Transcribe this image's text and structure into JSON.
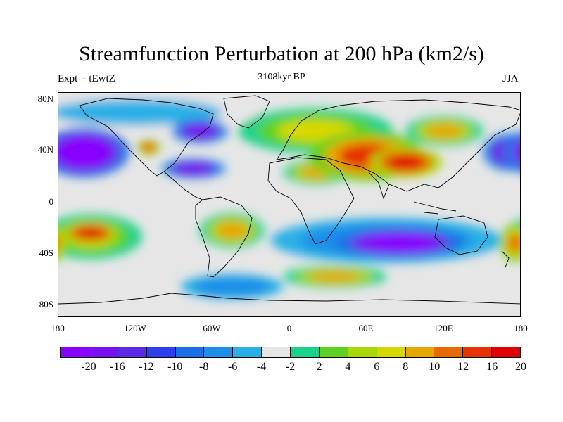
{
  "title": "Streamfunction Perturbation at 200 hPa (km2/s)",
  "left_subtitle": "Expt = tEwtZ",
  "center_subtitle": "3108kyr BP",
  "right_subtitle": "JJA",
  "y_ticks": [
    "80N",
    "40N",
    "0",
    "40S",
    "80S"
  ],
  "x_ticks": [
    "180",
    "120W",
    "60W",
    "0",
    "60E",
    "120E",
    "180"
  ],
  "colorbar": {
    "colors": [
      "#8a00ff",
      "#7a10f0",
      "#5b2ae6",
      "#2a40f0",
      "#1a6ee6",
      "#1e8fe8",
      "#2ab0e6",
      "#e6e6e6",
      "#1ad28c",
      "#5ed21e",
      "#a8d80c",
      "#d8d800",
      "#e6a800",
      "#e66a00",
      "#e63200",
      "#e00000"
    ],
    "labels": [
      "-20",
      "-16",
      "-12",
      "-10",
      "-8",
      "-6",
      "-4",
      "-2",
      "2",
      "4",
      "6",
      "8",
      "10",
      "12",
      "16",
      "20"
    ]
  },
  "field_blobs": [
    {
      "lon": 90,
      "lat": 30,
      "value": 20,
      "rlon": 28,
      "rlat": 12
    },
    {
      "lon": 60,
      "lat": 35,
      "value": 16,
      "rlon": 45,
      "rlat": 20
    },
    {
      "lon": 120,
      "lat": 55,
      "value": 10,
      "rlon": 30,
      "rlat": 12
    },
    {
      "lon": 20,
      "lat": 55,
      "value": 8,
      "rlon": 60,
      "rlat": 18
    },
    {
      "lon": 20,
      "lat": 22,
      "value": 10,
      "rlon": 25,
      "rlat": 10
    },
    {
      "lon": -155,
      "lat": -22,
      "value": 20,
      "rlon": 22,
      "rlat": 9
    },
    {
      "lon": -155,
      "lat": -25,
      "value": 8,
      "rlon": 40,
      "rlat": 18
    },
    {
      "lon": -45,
      "lat": -20,
      "value": 10,
      "rlon": 25,
      "rlat": 14
    },
    {
      "lon": 35,
      "lat": -57,
      "value": 10,
      "rlon": 40,
      "rlat": 9
    },
    {
      "lon": 175,
      "lat": -30,
      "value": 12,
      "rlon": 12,
      "rlat": 15
    },
    {
      "lon": -110,
      "lat": 42,
      "value": 16,
      "rlon": 9,
      "rlat": 6
    },
    {
      "lon": -160,
      "lat": 38,
      "value": -20,
      "rlon": 35,
      "rlat": 20
    },
    {
      "lon": 170,
      "lat": 38,
      "value": -16,
      "rlon": 20,
      "rlat": 15
    },
    {
      "lon": -75,
      "lat": 25,
      "value": -16,
      "rlon": 25,
      "rlat": 8
    },
    {
      "lon": -70,
      "lat": 55,
      "value": -16,
      "rlon": 22,
      "rlat": 10
    },
    {
      "lon": 85,
      "lat": -30,
      "value": -20,
      "rlon": 50,
      "rlat": 12
    },
    {
      "lon": 75,
      "lat": -28,
      "value": -6,
      "rlon": 90,
      "rlat": 18
    },
    {
      "lon": -45,
      "lat": -65,
      "value": -6,
      "rlon": 40,
      "rlat": 10
    },
    {
      "lon": -120,
      "lat": 70,
      "value": -4,
      "rlon": 90,
      "rlat": 14
    }
  ]
}
